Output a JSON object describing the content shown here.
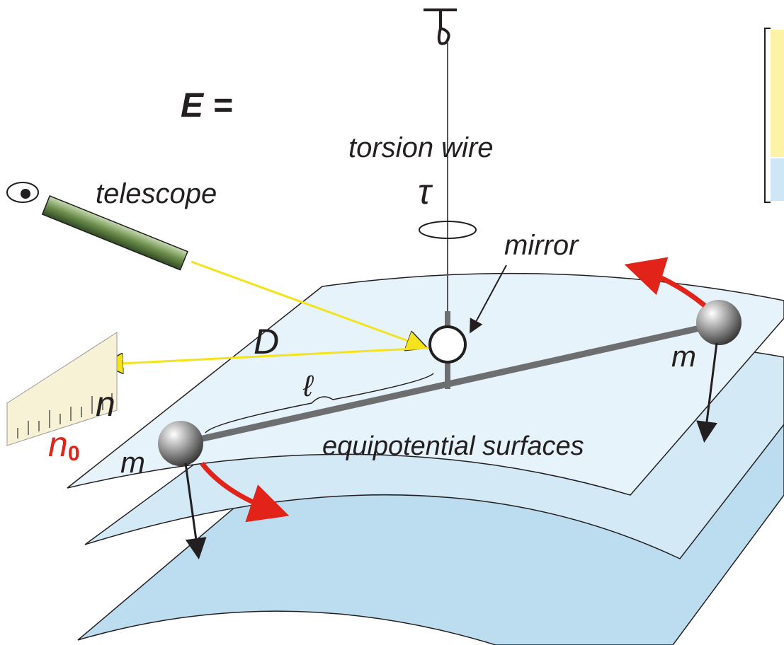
{
  "labels": {
    "torsion_wire": "torsion wire",
    "tau": "τ",
    "telescope": "telescope",
    "mirror": "mirror",
    "distance": "D",
    "arm_length": "ℓ",
    "reading": "n",
    "zero_reading": {
      "text": "n",
      "subscript": "0"
    },
    "mass_left": "m",
    "mass_right": "m",
    "surfaces": "equipotential surfaces",
    "matrix": "E ="
  }
}
